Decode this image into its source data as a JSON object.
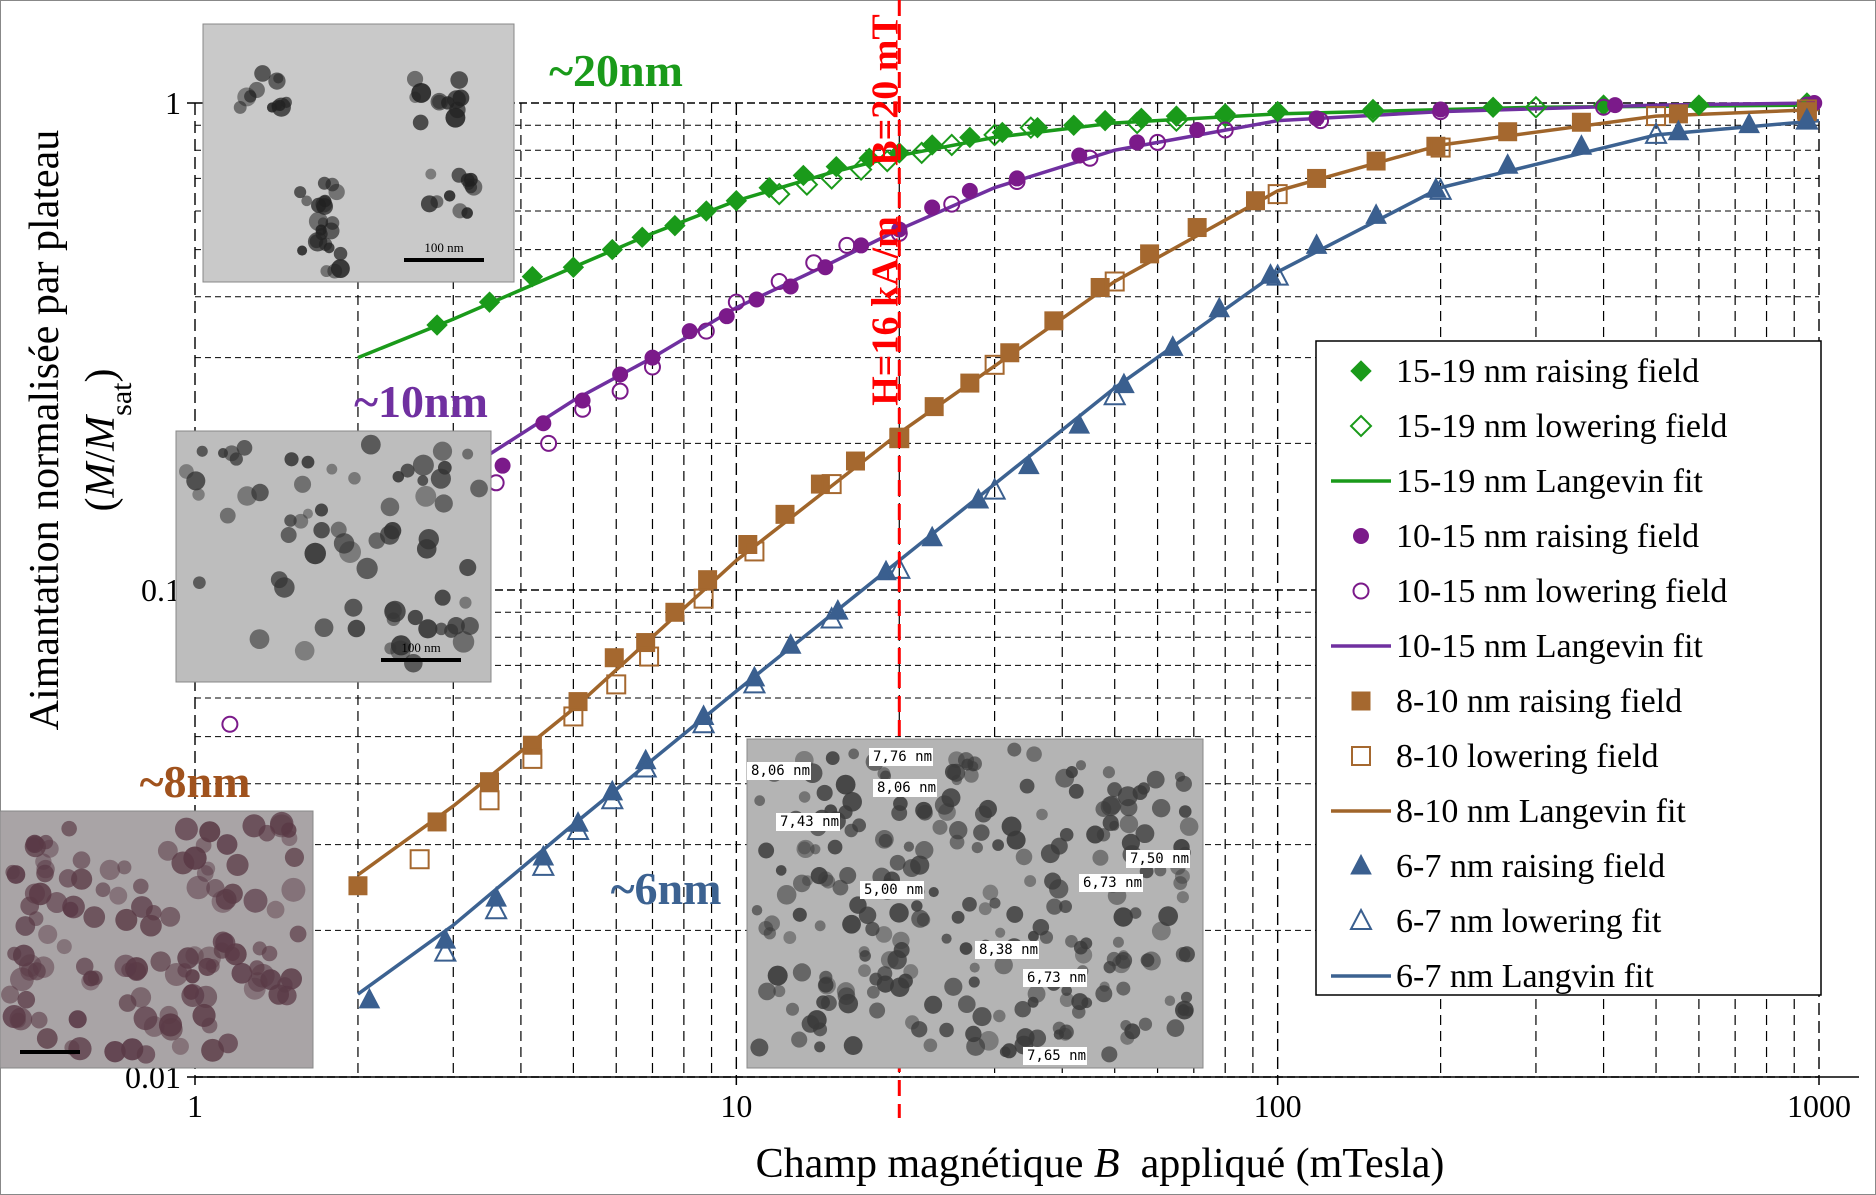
{
  "chart_data": {
    "type": "scatter",
    "xscale": "log",
    "yscale": "log",
    "xlabel_parts": [
      "Champ magnétique ",
      "B",
      "  appliqué (mTesla)"
    ],
    "ylabel": "Aimantation normalisée par plateau",
    "ylabel_parts": [
      "(",
      "M",
      "/",
      "M",
      "sat",
      ")"
    ],
    "xlim": [
      1,
      1000
    ],
    "ylim": [
      0.01,
      1
    ],
    "xticks": [
      1,
      10,
      100,
      1000
    ],
    "yticks": [
      0.01,
      0.1,
      1
    ],
    "grid": true,
    "minor_grid": true,
    "legend": "right",
    "reference_line": {
      "x": 20,
      "color": "#ff0000",
      "labels": [
        "B=20 mT",
        "H=16 kA/m"
      ]
    },
    "annotations": [
      {
        "text": "~20nm",
        "color": "#1a9a1a"
      },
      {
        "text": "~10nm",
        "color": "#7030a0"
      },
      {
        "text": "~8nm",
        "color": "#a0521d"
      },
      {
        "text": "~6nm",
        "color": "#3c6291"
      }
    ],
    "insets": [
      {
        "scale_label": "100 nm"
      },
      {
        "scale_label": "100 nm"
      },
      {},
      {
        "labels": [
          "8,06 nm",
          "7,76 nm",
          "8,06 nm",
          "7,43 nm",
          "5,00 nm",
          "7,50 nm",
          "6,73 nm",
          "8,38 nm",
          "6,73 nm",
          "7,65 nm"
        ]
      }
    ],
    "series": [
      {
        "name": "15-19 nm raising field",
        "color": "#1a9a1a",
        "style": "marker",
        "marker": "diamond",
        "filled": true,
        "x": [
          2.8,
          3.5,
          4.2,
          5,
          5.9,
          6.7,
          7.7,
          8.8,
          10,
          11.5,
          13.3,
          15.3,
          17.6,
          20,
          23,
          27,
          31,
          36,
          42,
          48,
          56,
          65,
          80,
          100,
          150,
          250,
          400,
          600,
          950
        ],
        "values": [
          0.35,
          0.39,
          0.44,
          0.46,
          0.5,
          0.53,
          0.56,
          0.6,
          0.63,
          0.67,
          0.71,
          0.74,
          0.77,
          0.79,
          0.82,
          0.85,
          0.87,
          0.89,
          0.9,
          0.92,
          0.93,
          0.94,
          0.95,
          0.96,
          0.97,
          0.98,
          0.99,
          0.99,
          1
        ]
      },
      {
        "name": "15-19 nm lowering field",
        "color": "#1a9a1a",
        "style": "marker",
        "marker": "diamond",
        "filled": false,
        "x": [
          12,
          13.5,
          15,
          17,
          19,
          22,
          25,
          30,
          35,
          55,
          65,
          80,
          150,
          300,
          950
        ],
        "values": [
          0.65,
          0.68,
          0.7,
          0.73,
          0.76,
          0.79,
          0.82,
          0.86,
          0.89,
          0.91,
          0.92,
          0.94,
          0.96,
          0.98,
          0.99
        ]
      },
      {
        "name": "15-19 nm Langevin fit",
        "color": "#1a9a1a",
        "style": "line",
        "x": [
          2,
          3,
          5,
          7,
          10,
          15,
          20,
          30,
          50,
          100,
          300,
          1000
        ],
        "values": [
          0.3,
          0.36,
          0.46,
          0.54,
          0.63,
          0.72,
          0.78,
          0.85,
          0.91,
          0.95,
          0.98,
          0.99
        ]
      },
      {
        "name": "10-15 nm raising field",
        "color": "#7b1a8a",
        "style": "marker",
        "marker": "circle",
        "filled": true,
        "x": [
          3.7,
          4.4,
          5.2,
          6.1,
          7,
          8.2,
          9.6,
          10.9,
          12.6,
          14.6,
          17,
          20,
          23,
          27,
          33,
          43,
          55,
          71,
          118,
          200,
          420,
          980
        ],
        "values": [
          0.18,
          0.22,
          0.245,
          0.277,
          0.3,
          0.34,
          0.365,
          0.395,
          0.42,
          0.46,
          0.51,
          0.55,
          0.61,
          0.66,
          0.7,
          0.78,
          0.83,
          0.88,
          0.93,
          0.97,
          0.99,
          1
        ]
      },
      {
        "name": "10-15 nm lowering field",
        "color": "#7b1a8a",
        "style": "marker",
        "marker": "circle",
        "filled": false,
        "x": [
          1.16,
          3.6,
          4.5,
          5.2,
          6.1,
          7,
          8.8,
          10,
          12,
          13.9,
          16,
          20,
          25,
          33,
          45,
          60,
          80,
          120,
          200,
          400,
          950
        ],
        "values": [
          0.053,
          0.166,
          0.2,
          0.235,
          0.256,
          0.287,
          0.34,
          0.39,
          0.43,
          0.47,
          0.51,
          0.54,
          0.62,
          0.69,
          0.77,
          0.83,
          0.88,
          0.92,
          0.96,
          0.98,
          0.99
        ]
      },
      {
        "name": "10-15 nm Langevin fit",
        "color": "#7030a0",
        "style": "line",
        "x": [
          3.5,
          5,
          7,
          10,
          15,
          20,
          30,
          50,
          100,
          200,
          500,
          1000
        ],
        "values": [
          0.19,
          0.245,
          0.3,
          0.38,
          0.47,
          0.55,
          0.67,
          0.8,
          0.92,
          0.96,
          0.99,
          1
        ]
      },
      {
        "name": "8-10 nm raising field",
        "color": "#a5682f",
        "style": "marker",
        "marker": "square",
        "filled": true,
        "x": [
          2,
          2.8,
          3.5,
          4.2,
          5.1,
          5.95,
          6.8,
          7.7,
          8.85,
          10.5,
          12.3,
          14.3,
          16.6,
          20,
          23.2,
          27,
          32,
          38.6,
          47,
          58,
          71,
          91,
          118,
          152,
          196,
          266,
          364,
          550,
          950
        ],
        "values": [
          0.0247,
          0.0334,
          0.0404,
          0.048,
          0.059,
          0.0726,
          0.078,
          0.09,
          0.105,
          0.124,
          0.143,
          0.165,
          0.184,
          0.206,
          0.238,
          0.266,
          0.307,
          0.357,
          0.418,
          0.49,
          0.555,
          0.63,
          0.7,
          0.76,
          0.815,
          0.873,
          0.913,
          0.95,
          0.96
        ]
      },
      {
        "name": "8-10 lowering field",
        "color": "#a5682f",
        "style": "marker",
        "marker": "square",
        "filled": false,
        "x": [
          2.6,
          3.5,
          4.2,
          5,
          6,
          6.9,
          8.7,
          10.8,
          15,
          20,
          30,
          50,
          100,
          200,
          500,
          950
        ],
        "values": [
          0.028,
          0.037,
          0.045,
          0.055,
          0.064,
          0.073,
          0.096,
          0.12,
          0.165,
          0.205,
          0.29,
          0.43,
          0.65,
          0.81,
          0.94,
          0.97
        ]
      },
      {
        "name": "8-10 nm Langevin fit",
        "color": "#a0652a",
        "style": "line",
        "x": [
          2,
          3,
          5,
          10,
          20,
          50,
          100,
          200,
          500,
          1000
        ],
        "values": [
          0.026,
          0.036,
          0.057,
          0.115,
          0.21,
          0.43,
          0.66,
          0.82,
          0.94,
          0.97
        ]
      },
      {
        "name": "6-7 nm raising field",
        "color": "#3a5f8f",
        "style": "marker",
        "marker": "triangle",
        "filled": true,
        "x": [
          2.1,
          2.9,
          3.6,
          4.4,
          5.1,
          5.9,
          6.8,
          8.7,
          10.8,
          12.6,
          15.4,
          18.9,
          23,
          28,
          34.7,
          43,
          52,
          64,
          78,
          97,
          118,
          152,
          196,
          266,
          364,
          550,
          743,
          950
        ],
        "values": [
          0.0144,
          0.0191,
          0.0233,
          0.0283,
          0.0332,
          0.0385,
          0.0446,
          0.055,
          0.066,
          0.077,
          0.0905,
          0.109,
          0.128,
          0.153,
          0.18,
          0.218,
          0.264,
          0.315,
          0.378,
          0.443,
          0.51,
          0.588,
          0.665,
          0.745,
          0.815,
          0.873,
          0.903,
          0.92
        ]
      },
      {
        "name": "6-7 nm lowering fit",
        "color": "#3a5f8f",
        "style": "marker",
        "marker": "triangle",
        "filled": false,
        "x": [
          2.9,
          3.6,
          4.4,
          5.1,
          5.9,
          6.8,
          8.7,
          10.8,
          15,
          20,
          30,
          50,
          100,
          200,
          500,
          950
        ],
        "values": [
          0.018,
          0.022,
          0.027,
          0.032,
          0.037,
          0.043,
          0.053,
          0.064,
          0.087,
          0.11,
          0.16,
          0.25,
          0.44,
          0.66,
          0.86,
          0.92
        ]
      },
      {
        "name": "6-7 nm Langvin fit",
        "color": "#3c6291",
        "style": "line",
        "x": [
          2,
          3,
          5,
          10,
          20,
          50,
          100,
          200,
          500,
          1000
        ],
        "values": [
          0.0148,
          0.0205,
          0.033,
          0.062,
          0.115,
          0.26,
          0.45,
          0.67,
          0.86,
          0.92
        ]
      }
    ]
  }
}
